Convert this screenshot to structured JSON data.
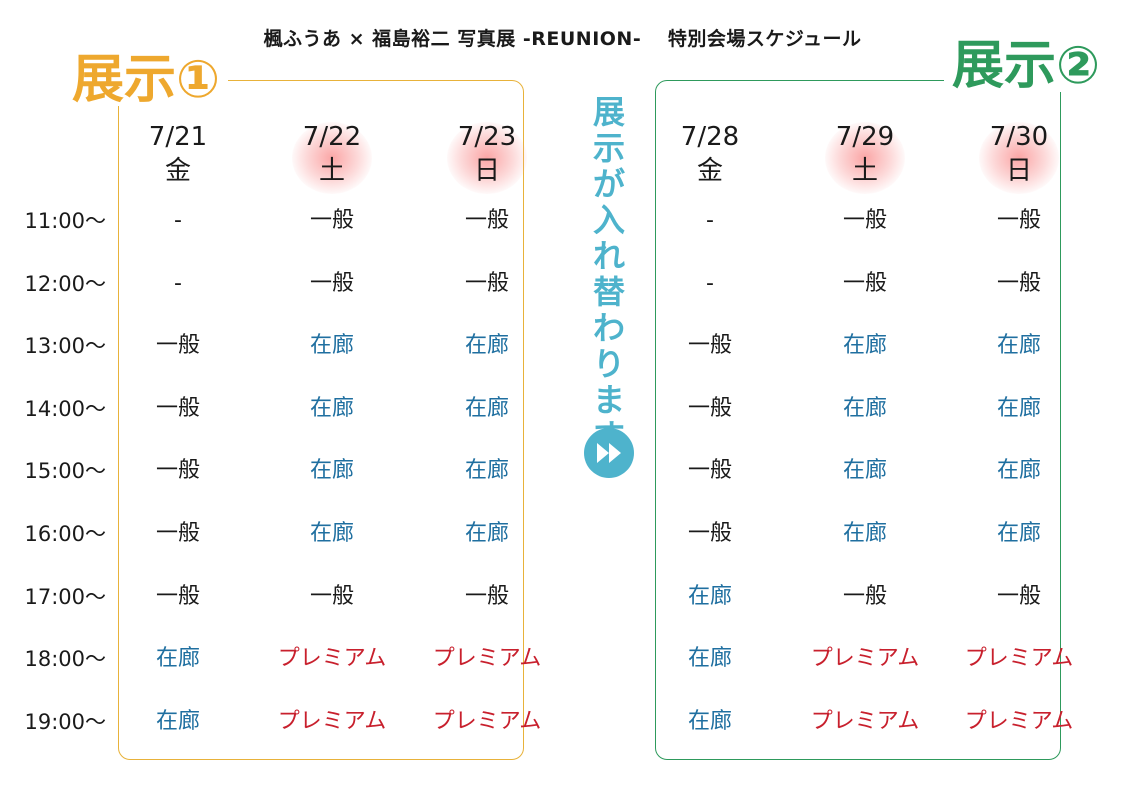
{
  "title": "楓ふうあ × 福島裕二 写真展 -REUNION-　 特別会場スケジュール",
  "colors": {
    "exhibit1": "#eea82e",
    "exhibit2": "#2e9a5c",
    "general": "#1a1a1a",
    "zairo": "#1f6fa0",
    "premium": "#c8202d",
    "banner": "#4eb3cc"
  },
  "exhibit1": {
    "label": "展示①",
    "days": [
      {
        "date": "7/21",
        "weekday": "金",
        "highlight": false
      },
      {
        "date": "7/22",
        "weekday": "土",
        "highlight": true
      },
      {
        "date": "7/23",
        "weekday": "日",
        "highlight": true
      }
    ]
  },
  "exhibit2": {
    "label": "展示②",
    "days": [
      {
        "date": "7/28",
        "weekday": "金",
        "highlight": false
      },
      {
        "date": "7/29",
        "weekday": "土",
        "highlight": true
      },
      {
        "date": "7/30",
        "weekday": "日",
        "highlight": true
      }
    ]
  },
  "times": [
    "11:00～",
    "12:00～",
    "13:00～",
    "14:00～",
    "15:00～",
    "16:00～",
    "17:00～",
    "18:00～",
    "19:00～"
  ],
  "banner_text": "展示が入れ替わります",
  "banner_icon": "fast-forward-icon",
  "schedule": [
    [
      "-",
      "一般",
      "一般",
      "-",
      "一般",
      "一般"
    ],
    [
      "-",
      "一般",
      "一般",
      "-",
      "一般",
      "一般"
    ],
    [
      "一般",
      "在廊",
      "在廊",
      "一般",
      "在廊",
      "在廊"
    ],
    [
      "一般",
      "在廊",
      "在廊",
      "一般",
      "在廊",
      "在廊"
    ],
    [
      "一般",
      "在廊",
      "在廊",
      "一般",
      "在廊",
      "在廊"
    ],
    [
      "一般",
      "在廊",
      "在廊",
      "一般",
      "在廊",
      "在廊"
    ],
    [
      "一般",
      "一般",
      "一般",
      "在廊",
      "一般",
      "一般"
    ],
    [
      "在廊",
      "プレミアム",
      "プレミアム",
      "在廊",
      "プレミアム",
      "プレミアム"
    ],
    [
      "在廊",
      "プレミアム",
      "プレミアム",
      "在廊",
      "プレミアム",
      "プレミアム"
    ]
  ]
}
